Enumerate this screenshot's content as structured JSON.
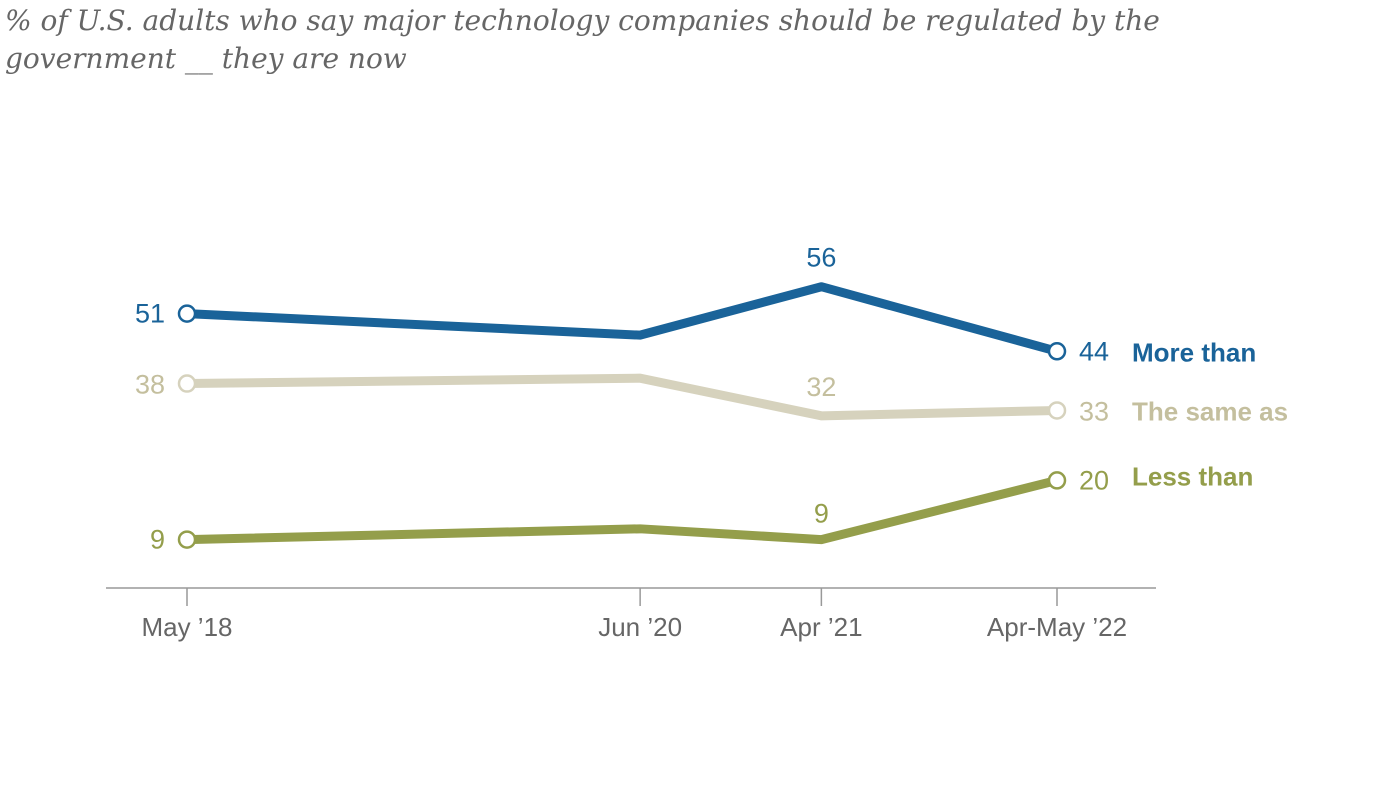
{
  "subtitle": "% of U.S. adults who say major technology companies should be regulated by the government __ they are now",
  "chart_data": {
    "type": "line",
    "title": "",
    "subtitle": "% of U.S. adults who say major technology companies should be regulated by the government __ they are now",
    "xlabel": "",
    "ylabel": "",
    "categories": [
      "May ’18",
      "Jun ’20",
      "Apr ’21",
      "Apr-May ’22"
    ],
    "x_dates": [
      "2018-05",
      "2020-06",
      "2021-04",
      "2022-05"
    ],
    "ylim": [
      0,
      70
    ],
    "grid": false,
    "legend": "inline-right",
    "series": [
      {
        "name": "More than",
        "color": "#1a6399",
        "values": [
          51,
          47,
          56,
          44
        ],
        "labels": [
          "51",
          "",
          "56",
          "44"
        ]
      },
      {
        "name": "The same as",
        "color": "#d6d2bd",
        "label_color": "#c4bf9e",
        "values": [
          38,
          39,
          32,
          33
        ],
        "labels": [
          "38",
          "",
          "32",
          "33"
        ]
      },
      {
        "name": "Less than",
        "color": "#949e4b",
        "values": [
          9,
          11,
          9,
          20
        ],
        "labels": [
          "9",
          "",
          "9",
          "20"
        ]
      }
    ]
  }
}
